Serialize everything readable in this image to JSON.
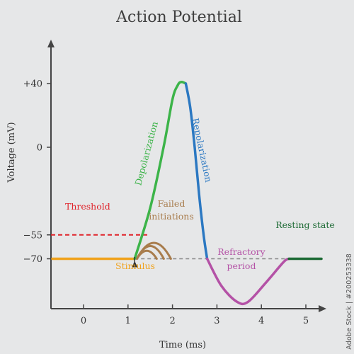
{
  "chart_data": {
    "type": "line",
    "title": "Action Potential",
    "xlabel": "Time (ms)",
    "ylabel": "Voltage (mV)",
    "xlim": [
      -0.7,
      5.4
    ],
    "ylim": [
      -95,
      60
    ],
    "x_ticks": [
      "0",
      "1",
      "2",
      "3",
      "4",
      "5"
    ],
    "y_ticks": [
      "+40",
      "0",
      "−55",
      "−70"
    ],
    "grid": false,
    "reference_lines": [
      {
        "label": "Threshold",
        "y": -55,
        "color": "#e0242b"
      },
      {
        "y": -70,
        "color": "#777777"
      }
    ],
    "segments": [
      {
        "name": "Stimulus",
        "color": "#f0a21d",
        "points": [
          [
            -0.7,
            -70
          ],
          [
            1.15,
            -70
          ]
        ]
      },
      {
        "name": "Depolarization",
        "color": "#3cb449",
        "points": [
          [
            1.15,
            -70
          ],
          [
            1.5,
            -38
          ],
          [
            1.8,
            0
          ],
          [
            2.0,
            30
          ],
          [
            2.12,
            39
          ],
          [
            2.2,
            41
          ],
          [
            2.3,
            40
          ]
        ]
      },
      {
        "name": "Repolarization",
        "color": "#2b78c2",
        "points": [
          [
            2.3,
            40
          ],
          [
            2.4,
            25
          ],
          [
            2.5,
            0
          ],
          [
            2.6,
            -30
          ],
          [
            2.7,
            -55
          ],
          [
            2.78,
            -70
          ]
        ]
      },
      {
        "name": "Refractory period",
        "color": "#b452a6",
        "points": [
          [
            2.78,
            -70
          ],
          [
            3.1,
            -87
          ],
          [
            3.45,
            -97
          ],
          [
            3.7,
            -97
          ],
          [
            4.1,
            -85
          ],
          [
            4.5,
            -72
          ],
          [
            4.62,
            -70
          ]
        ]
      },
      {
        "name": "Resting state",
        "color": "#1e6b35",
        "points": [
          [
            4.62,
            -70
          ],
          [
            5.35,
            -70
          ]
        ]
      }
    ],
    "failed_initiations": {
      "label": "Failed\ninitiations",
      "color": "#a87c4c",
      "start_x": 1.2,
      "peaks": [
        -65,
        -62,
        -60
      ]
    },
    "annotations": {
      "threshold": "Threshold",
      "failed": "Failed initiations",
      "stimulus": "Stimulus",
      "depolarization": "Depolarization",
      "repolarization": "Repolarization",
      "refractory_line1": "Refractory",
      "refractory_line2": "period",
      "resting": "Resting state"
    }
  },
  "colors": {
    "axis": "#444444",
    "text": "#333333",
    "background": "#e6e7e8"
  },
  "watermark": {
    "side_text": "Adobe Stock | #200253338"
  }
}
